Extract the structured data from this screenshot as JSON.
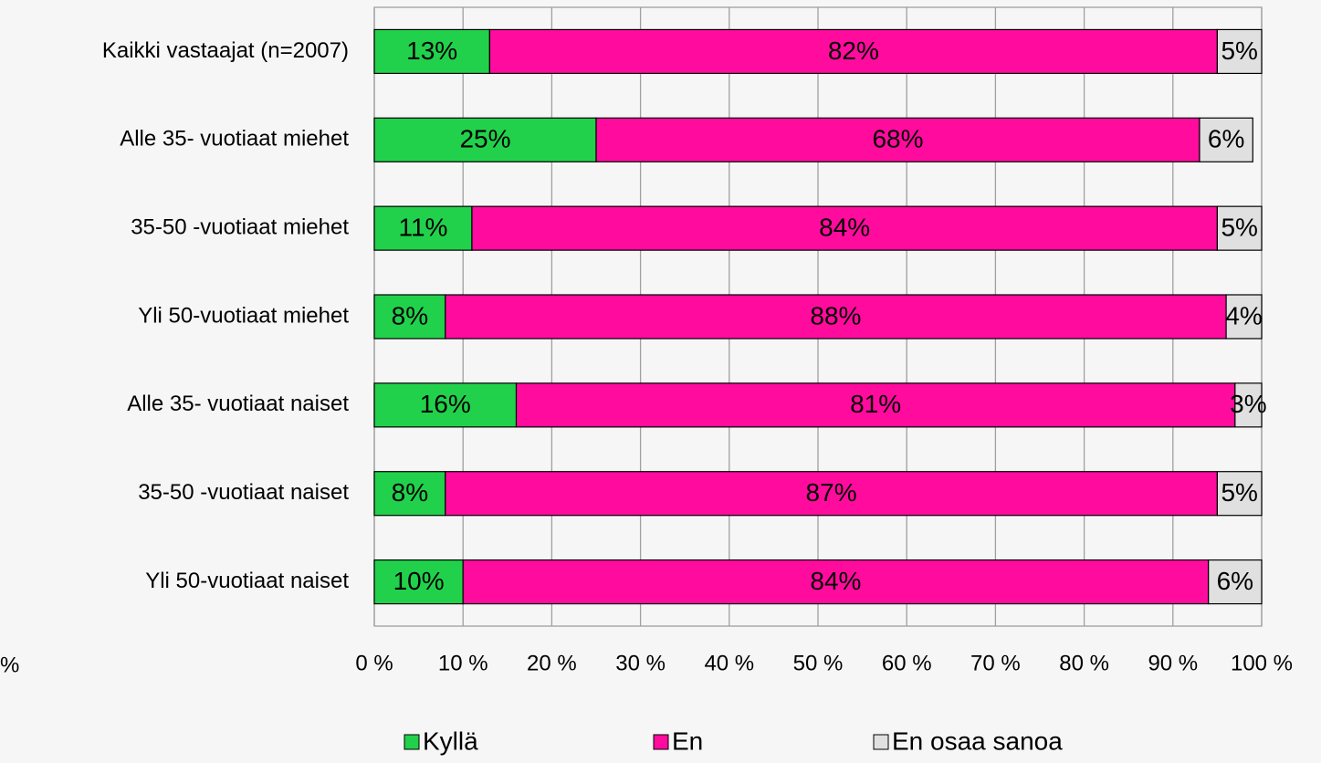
{
  "chart_data": {
    "type": "stacked_barh",
    "categories": [
      "Kaikki vastaajat (n=2007)",
      "Alle 35- vuotiaat miehet",
      "35-50 -vuotiaat miehet",
      "Yli 50-vuotiaat miehet",
      "Alle 35- vuotiaat naiset",
      "35-50 -vuotiaat naiset",
      "Yli 50-vuotiaat naiset"
    ],
    "series": [
      {
        "name": "Kyllä",
        "color": "#22d14b",
        "values": [
          13,
          25,
          11,
          8,
          16,
          8,
          10
        ],
        "value_labels": [
          "13%",
          "25%",
          "11%",
          "8%",
          "16%",
          "8%",
          "10%"
        ]
      },
      {
        "name": "En",
        "color": "#ff0b9e",
        "values": [
          82,
          68,
          84,
          88,
          81,
          87,
          84
        ],
        "value_labels": [
          "82%",
          "68%",
          "84%",
          "88%",
          "81%",
          "87%",
          "84%"
        ]
      },
      {
        "name": "En osaa sanoa",
        "color": "#e0e0e0",
        "values": [
          5,
          6,
          5,
          4,
          3,
          5,
          6
        ],
        "value_labels": [
          "5%",
          "6%",
          "5%",
          "4%",
          "3%",
          "5%",
          "6%"
        ]
      }
    ],
    "xlim": [
      0,
      100
    ],
    "xticks": [
      {
        "value": 0,
        "label": "0 %"
      },
      {
        "value": 10,
        "label": "10 %"
      },
      {
        "value": 20,
        "label": "20 %"
      },
      {
        "value": 30,
        "label": "30 %"
      },
      {
        "value": 40,
        "label": "40 %"
      },
      {
        "value": 50,
        "label": "50 %"
      },
      {
        "value": 60,
        "label": "60 %"
      },
      {
        "value": 70,
        "label": "70 %"
      },
      {
        "value": 80,
        "label": "80 %"
      },
      {
        "value": 90,
        "label": "90 %"
      },
      {
        "value": 100,
        "label": "100 %"
      }
    ],
    "grid": true,
    "legend": "bottom",
    "annotations": [
      "%"
    ]
  }
}
